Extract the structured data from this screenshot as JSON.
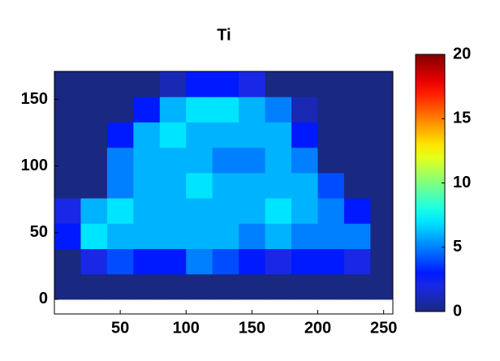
{
  "chart_data": {
    "type": "heatmap",
    "title": "Ti",
    "x_edges": [
      0,
      20,
      40,
      60,
      80,
      100,
      120,
      140,
      160,
      180,
      200,
      220,
      240,
      257
    ],
    "y_edges": [
      0,
      19,
      38,
      57,
      76,
      95,
      114,
      133,
      152,
      171
    ],
    "values": [
      [
        0,
        0,
        0,
        0,
        0,
        0,
        0,
        0,
        0,
        0,
        0,
        0,
        0
      ],
      [
        0,
        2,
        4,
        3,
        3,
        5,
        4,
        3,
        2,
        3,
        3,
        2,
        0
      ],
      [
        3,
        7,
        6,
        6,
        6,
        6,
        6,
        5,
        6,
        5,
        5,
        5,
        0
      ],
      [
        2,
        6,
        7,
        6,
        6,
        6,
        6,
        6,
        7,
        6,
        5,
        3,
        0
      ],
      [
        0,
        0,
        5,
        6,
        6,
        7,
        6,
        6,
        6,
        6,
        4,
        0,
        0
      ],
      [
        0,
        0,
        5,
        6,
        6,
        6,
        5,
        5,
        6,
        5,
        0,
        0,
        0
      ],
      [
        0,
        0,
        3,
        6,
        7,
        6,
        6,
        6,
        6,
        3,
        0,
        0,
        0
      ],
      [
        0,
        0,
        0,
        3,
        6,
        7,
        7,
        6,
        5,
        1,
        0,
        0,
        0
      ],
      [
        0,
        0,
        0,
        0,
        1,
        3,
        3,
        2,
        0,
        0,
        0,
        0,
        0
      ]
    ],
    "xlim": [
      0,
      257
    ],
    "xticks": [
      50,
      100,
      150,
      200,
      250
    ],
    "ylim": [
      -11,
      171
    ],
    "yticks": [
      0,
      50,
      100,
      150
    ],
    "colormap": "jet",
    "clim": [
      0,
      20
    ],
    "cticks": [
      0,
      5,
      10,
      15,
      20
    ]
  }
}
